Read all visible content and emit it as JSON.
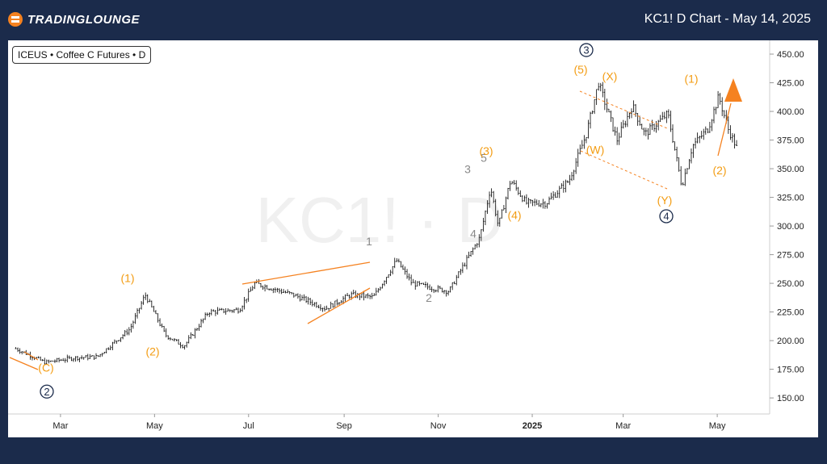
{
  "header": {
    "brand": "TRADINGLOUNGE",
    "title": "KC1! D Chart - May 14, 2025"
  },
  "symbol_label": "ICEUS • Coffee C Futures • D",
  "watermark": "KC1! · D",
  "colors": {
    "background": "#1b2b4b",
    "accent": "#f58220",
    "orange_label": "#f39c12",
    "grey_label": "#888888",
    "navy_label": "#1b2b4b",
    "candle": "#000000"
  },
  "chart_data": {
    "type": "candlestick",
    "title": "KC1! D Chart - May 14, 2025",
    "instrument": "ICEUS • Coffee C Futures • D",
    "x_ticks": [
      "Mar",
      "May",
      "Jul",
      "Sep",
      "Nov",
      "2025",
      "Mar",
      "May"
    ],
    "y_ticks": [
      150,
      175,
      200,
      225,
      250,
      275,
      300,
      325,
      350,
      375,
      400,
      425,
      450
    ],
    "y_tick_labels": [
      "150.00",
      "175.00",
      "200.00",
      "225.00",
      "250.00",
      "275.00",
      "300.00",
      "325.00",
      "350.00",
      "375.00",
      "400.00",
      "425.00",
      "450.00"
    ],
    "ylim": [
      136,
      462
    ],
    "price_path": [
      [
        "2024-02-01",
        193
      ],
      [
        "2024-02-20",
        181
      ],
      [
        "2024-03-10",
        185
      ],
      [
        "2024-03-25",
        186
      ],
      [
        "2024-04-15",
        210
      ],
      [
        "2024-04-25",
        240
      ],
      [
        "2024-05-08",
        205
      ],
      [
        "2024-05-20",
        195
      ],
      [
        "2024-06-05",
        225
      ],
      [
        "2024-06-25",
        227
      ],
      [
        "2024-07-05",
        250
      ],
      [
        "2024-07-30",
        240
      ],
      [
        "2024-08-20",
        228
      ],
      [
        "2024-09-05",
        240
      ],
      [
        "2024-09-20",
        238
      ],
      [
        "2024-10-05",
        270
      ],
      [
        "2024-10-15",
        250
      ],
      [
        "2024-10-28",
        246
      ],
      [
        "2024-11-08",
        243
      ],
      [
        "2024-11-15",
        260
      ],
      [
        "2024-11-28",
        290
      ],
      [
        "2024-12-05",
        334
      ],
      [
        "2024-12-10",
        300
      ],
      [
        "2024-12-18",
        340
      ],
      [
        "2024-12-28",
        320
      ],
      [
        "2025-01-10",
        320
      ],
      [
        "2025-01-25",
        340
      ],
      [
        "2025-02-05",
        380
      ],
      [
        "2025-02-13",
        425
      ],
      [
        "2025-02-25",
        375
      ],
      [
        "2025-03-07",
        405
      ],
      [
        "2025-03-15",
        380
      ],
      [
        "2025-03-30",
        398
      ],
      [
        "2025-04-08",
        335
      ],
      [
        "2025-04-15",
        370
      ],
      [
        "2025-04-25",
        385
      ],
      [
        "2025-05-02",
        413
      ],
      [
        "2025-05-08",
        385
      ],
      [
        "2025-05-14",
        367
      ]
    ],
    "wave_labels": [
      {
        "text": "(C)",
        "price": 173,
        "color": "orange"
      },
      {
        "text": "2",
        "price": 152,
        "style": "circled"
      },
      {
        "text": "(1)",
        "price": 251,
        "color": "orange"
      },
      {
        "text": "(2)",
        "price": 187,
        "color": "orange"
      },
      {
        "text": "1",
        "price": 283,
        "color": "grey"
      },
      {
        "text": "2",
        "price": 234,
        "color": "grey"
      },
      {
        "text": "3",
        "price": 346,
        "color": "grey"
      },
      {
        "text": "4",
        "price": 290,
        "color": "grey"
      },
      {
        "text": "5",
        "price": 356,
        "color": "grey"
      },
      {
        "text": "(3)",
        "price": 362,
        "color": "orange"
      },
      {
        "text": "(4)",
        "price": 306,
        "color": "orange"
      },
      {
        "text": "(5)",
        "price": 433,
        "color": "orange"
      },
      {
        "text": "3",
        "price": 450,
        "style": "circled"
      },
      {
        "text": "(X)",
        "price": 427,
        "color": "orange"
      },
      {
        "text": "(W)",
        "price": 363,
        "color": "orange"
      },
      {
        "text": "(Y)",
        "price": 319,
        "color": "orange"
      },
      {
        "text": "4",
        "price": 305,
        "style": "circled"
      },
      {
        "text": "(1)",
        "price": 425,
        "color": "orange"
      },
      {
        "text": "(2)",
        "price": 345,
        "color": "orange"
      }
    ],
    "legend": "none",
    "grid": false
  }
}
